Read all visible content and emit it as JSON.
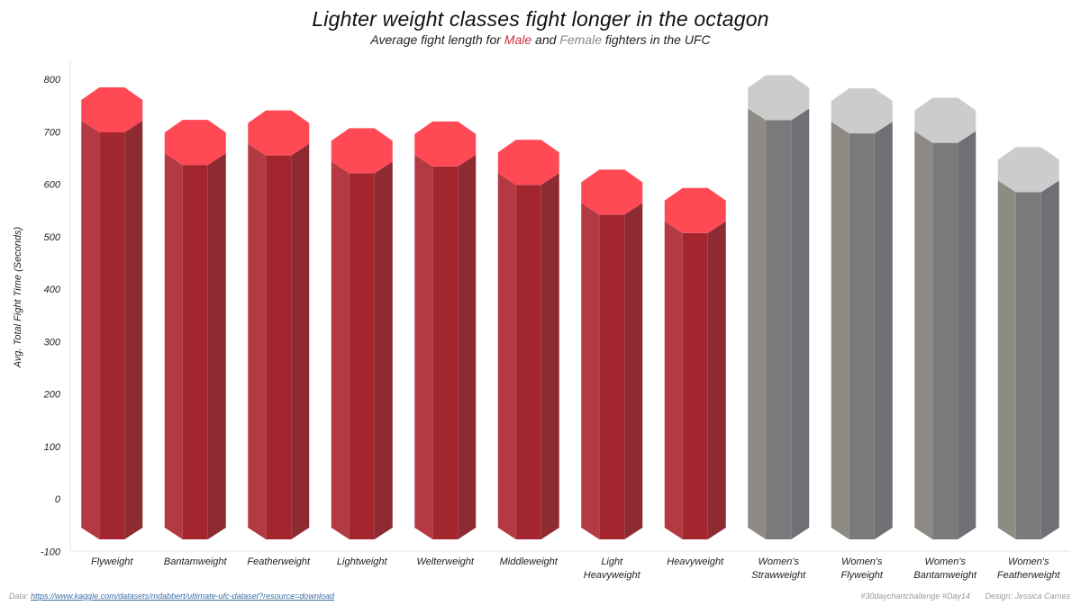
{
  "header": {
    "title": "Lighter weight classes fight longer in the octagon",
    "subtitle_prefix": "Average fight length for",
    "subtitle_male": "Male",
    "subtitle_and": "and",
    "subtitle_female": "Female",
    "subtitle_suffix": "fighters in the UFC"
  },
  "footer": {
    "data_label": "Data:",
    "data_url": "https://www.kaggle.com/datasets/mdabbert/ultimate-ufc-dataset?resource=download",
    "hashtag": "#30daychartchallenge #Day14",
    "credit": "Design: Jessica Carnes"
  },
  "colors": {
    "male_top": "#ff4a56",
    "male_body": "#a3262f",
    "male_side": "#b33a42",
    "male_dark": "#8e2a32",
    "female_top": "#cccccc",
    "female_body": "#7a7a7a",
    "female_side": "#8e8a84",
    "female_dark": "#6e7075"
  },
  "chart_data": {
    "type": "bar",
    "title": "Lighter weight classes fight longer in the octagon",
    "ylabel": "Avg. Total Fight Time (Seconds)",
    "xlabel": "",
    "ylim": [
      -100,
      800
    ],
    "yticks": [
      -100,
      0,
      100,
      200,
      300,
      400,
      500,
      600,
      700,
      800
    ],
    "grid": false,
    "categories": [
      [
        "Flyweight"
      ],
      [
        "Bantamweight"
      ],
      [
        "Featherweight"
      ],
      [
        "Lightweight"
      ],
      [
        "Welterweight"
      ],
      [
        "Middleweight"
      ],
      [
        "Light",
        "Heavyweight"
      ],
      [
        "Heavyweight"
      ],
      [
        "Women's",
        "Strawweight"
      ],
      [
        "Women's",
        "Flyweight"
      ],
      [
        "Women's",
        "Bantamweight"
      ],
      [
        "Women's",
        "Featherweight"
      ]
    ],
    "series": [
      {
        "name": "Male",
        "values": [
          740,
          678,
          696,
          662,
          675,
          640,
          583,
          548,
          null,
          null,
          null,
          null
        ]
      },
      {
        "name": "Female",
        "values": [
          null,
          null,
          null,
          null,
          null,
          null,
          null,
          null,
          763,
          738,
          720,
          626
        ]
      }
    ]
  }
}
